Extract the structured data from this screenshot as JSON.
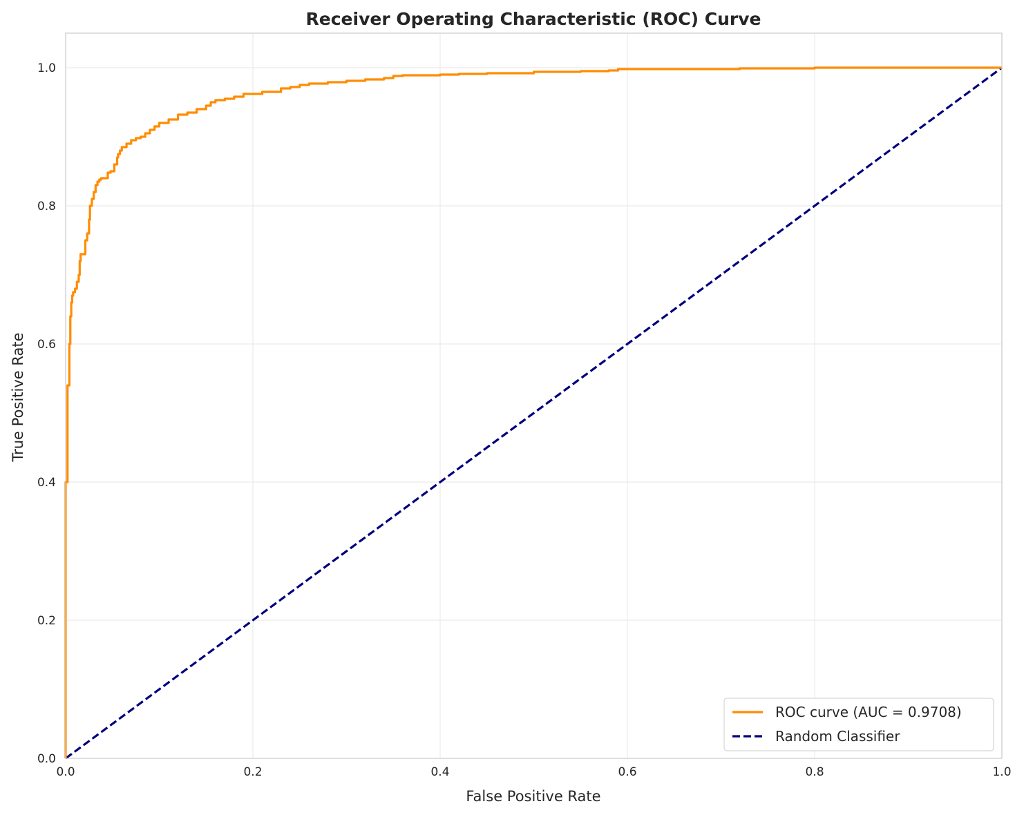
{
  "chart_data": {
    "type": "line",
    "title": "Receiver Operating Characteristic (ROC) Curve",
    "xlabel": "False Positive Rate",
    "ylabel": "True Positive Rate",
    "xlim": [
      0.0,
      1.0
    ],
    "ylim": [
      0.0,
      1.05
    ],
    "xticks": [
      0.0,
      0.2,
      0.4,
      0.6,
      0.8,
      1.0
    ],
    "yticks": [
      0.0,
      0.2,
      0.4,
      0.6,
      0.8,
      1.0
    ],
    "xtick_labels": [
      "0.0",
      "0.2",
      "0.4",
      "0.6",
      "0.8",
      "1.0"
    ],
    "ytick_labels": [
      "0.0",
      "0.2",
      "0.4",
      "0.6",
      "0.8",
      "1.0"
    ],
    "grid": true,
    "legend_position": "bottom-right",
    "series": [
      {
        "name": "ROC curve (AUC = 0.9708)",
        "color": "#ff8c00",
        "style": "solid",
        "x": [
          0.0,
          0.0,
          0.002,
          0.002,
          0.004,
          0.004,
          0.005,
          0.005,
          0.006,
          0.007,
          0.008,
          0.01,
          0.012,
          0.014,
          0.015,
          0.016,
          0.02,
          0.021,
          0.023,
          0.025,
          0.026,
          0.028,
          0.03,
          0.032,
          0.034,
          0.036,
          0.038,
          0.04,
          0.045,
          0.048,
          0.052,
          0.055,
          0.056,
          0.058,
          0.06,
          0.065,
          0.07,
          0.075,
          0.08,
          0.085,
          0.09,
          0.095,
          0.1,
          0.11,
          0.12,
          0.13,
          0.14,
          0.15,
          0.155,
          0.16,
          0.17,
          0.18,
          0.19,
          0.21,
          0.23,
          0.24,
          0.25,
          0.26,
          0.28,
          0.3,
          0.32,
          0.34,
          0.35,
          0.36,
          0.4,
          0.42,
          0.45,
          0.5,
          0.55,
          0.58,
          0.59,
          0.6,
          0.7,
          0.72,
          0.8,
          0.9,
          1.0
        ],
        "y": [
          0.0,
          0.4,
          0.5,
          0.54,
          0.55,
          0.6,
          0.62,
          0.64,
          0.66,
          0.67,
          0.675,
          0.68,
          0.69,
          0.7,
          0.72,
          0.73,
          0.73,
          0.75,
          0.76,
          0.78,
          0.8,
          0.81,
          0.82,
          0.83,
          0.835,
          0.838,
          0.84,
          0.84,
          0.848,
          0.85,
          0.86,
          0.87,
          0.875,
          0.88,
          0.885,
          0.89,
          0.895,
          0.898,
          0.9,
          0.905,
          0.91,
          0.915,
          0.92,
          0.925,
          0.932,
          0.935,
          0.94,
          0.945,
          0.95,
          0.953,
          0.955,
          0.958,
          0.962,
          0.965,
          0.97,
          0.972,
          0.975,
          0.977,
          0.979,
          0.981,
          0.983,
          0.985,
          0.988,
          0.989,
          0.99,
          0.991,
          0.992,
          0.994,
          0.995,
          0.996,
          0.998,
          0.998,
          0.998,
          0.999,
          1.0,
          1.0,
          1.0
        ]
      },
      {
        "name": "Random Classifier",
        "color": "#000080",
        "style": "dashed",
        "x": [
          0.0,
          1.0
        ],
        "y": [
          0.0,
          1.0
        ]
      }
    ]
  }
}
